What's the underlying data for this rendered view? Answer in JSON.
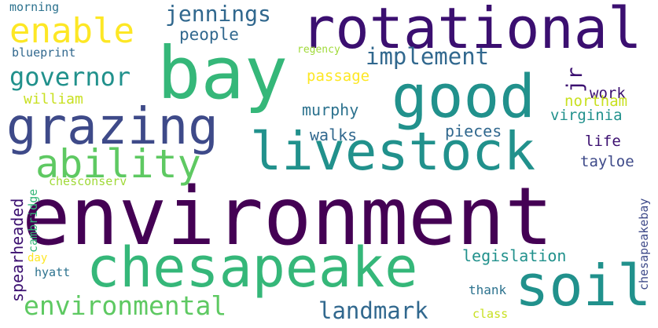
{
  "words": [
    {
      "text": "environment",
      "color": "#440154",
      "rotated": false
    },
    {
      "text": "bay",
      "color": "#35b779",
      "rotated": false
    },
    {
      "text": "rotational",
      "color": "#3b0f70",
      "rotated": false
    },
    {
      "text": "grazing",
      "color": "#3e4a89",
      "rotated": false
    },
    {
      "text": "good",
      "color": "#21918c",
      "rotated": false
    },
    {
      "text": "livestock",
      "color": "#21918c",
      "rotated": false
    },
    {
      "text": "chesapeake",
      "color": "#35b779",
      "rotated": false
    },
    {
      "text": "soil",
      "color": "#21918c",
      "rotated": false
    },
    {
      "text": "enable",
      "color": "#fde725",
      "rotated": false
    },
    {
      "text": "ability",
      "color": "#5ec962",
      "rotated": false
    },
    {
      "text": "jennings",
      "color": "#31688e",
      "rotated": false
    },
    {
      "text": "governor",
      "color": "#21918c",
      "rotated": false
    },
    {
      "text": "implement",
      "color": "#31688e",
      "rotated": false
    },
    {
      "text": "environmental",
      "color": "#5ec962",
      "rotated": false
    },
    {
      "text": "landmark",
      "color": "#31688e",
      "rotated": false
    },
    {
      "text": "jr",
      "color": "#3b0f70",
      "rotated": true
    },
    {
      "text": "people",
      "color": "#31688e",
      "rotated": false
    },
    {
      "text": "william",
      "color": "#c8e020",
      "rotated": false
    },
    {
      "text": "passage",
      "color": "#fde725",
      "rotated": false
    },
    {
      "text": "murphy",
      "color": "#2c728e",
      "rotated": false
    },
    {
      "text": "work",
      "color": "#3b0f70",
      "rotated": false
    },
    {
      "text": "northam",
      "color": "#c8e020",
      "rotated": false
    },
    {
      "text": "virginia",
      "color": "#21918c",
      "rotated": false
    },
    {
      "text": "walks",
      "color": "#31688e",
      "rotated": false
    },
    {
      "text": "pieces",
      "color": "#31688e",
      "rotated": false
    },
    {
      "text": "life",
      "color": "#3b0f70",
      "rotated": false
    },
    {
      "text": "tayloe",
      "color": "#3e4a89",
      "rotated": false
    },
    {
      "text": "legislation",
      "color": "#21918c",
      "rotated": false
    },
    {
      "text": "morning",
      "color": "#2c728e",
      "rotated": false
    },
    {
      "text": "blueprint",
      "color": "#31688e",
      "rotated": false
    },
    {
      "text": "regency",
      "color": "#a0da39",
      "rotated": false
    },
    {
      "text": "chesconserv",
      "color": "#a0da39",
      "rotated": false
    },
    {
      "text": "spearheaded",
      "color": "#3b0f70",
      "rotated": true
    },
    {
      "text": "cambridge",
      "color": "#35b779",
      "rotated": true
    },
    {
      "text": "day",
      "color": "#fde725",
      "rotated": false
    },
    {
      "text": "hyatt",
      "color": "#2c728e",
      "rotated": false
    },
    {
      "text": "thank",
      "color": "#2c728e",
      "rotated": false
    },
    {
      "text": "class",
      "color": "#c8e020",
      "rotated": false
    },
    {
      "text": "chesapeakebay",
      "color": "#3e4a89",
      "rotated": true
    }
  ]
}
